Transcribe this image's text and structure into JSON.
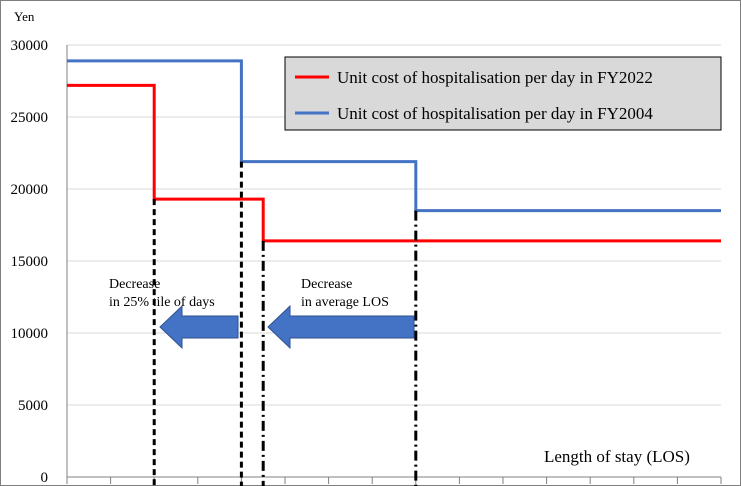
{
  "chart_data": {
    "type": "line",
    "step": true,
    "y_unit": "Yen",
    "xlabel": "Length of stay (LOS)",
    "ylim": [
      0,
      30000
    ],
    "yticks": [
      0,
      5000,
      10000,
      15000,
      20000,
      25000,
      30000
    ],
    "grid": true,
    "legend_position": "top-right",
    "series": [
      {
        "name": "Unit cost of hospitalisation per day in FY2022",
        "color": "#ff0000",
        "steps": [
          {
            "x0": 0,
            "x1": 1,
            "y": 27200
          },
          {
            "x0": 1,
            "x1": 2.25,
            "y": 19300
          },
          {
            "x0": 2.25,
            "x1": 7.5,
            "y": 16400
          }
        ]
      },
      {
        "name": "Unit cost of hospitalisation per day in FY2004",
        "color": "#4472c4",
        "steps": [
          {
            "x0": 0,
            "x1": 2,
            "y": 28900
          },
          {
            "x0": 2,
            "x1": 4,
            "y": 21900
          },
          {
            "x0": 4,
            "x1": 7.5,
            "y": 18500
          }
        ]
      }
    ],
    "annotations": [
      {
        "line1": "Decrease",
        "line2": "in 25% tile of days"
      },
      {
        "line1": "Decrease",
        "line2": "in average LOS"
      }
    ]
  }
}
